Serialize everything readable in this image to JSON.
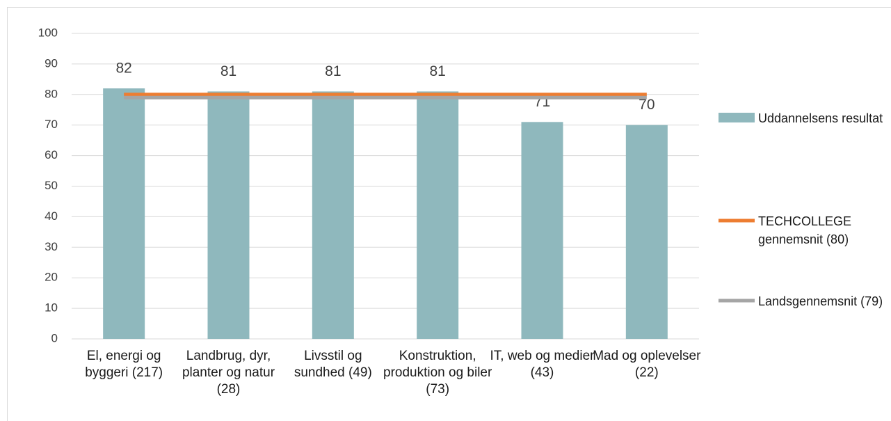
{
  "chart_data": {
    "type": "bar",
    "categories": [
      "El, energi og byggeri (217)",
      "Landbrug, dyr, planter og natur (28)",
      "Livsstil og sundhed (49)",
      "Konstruktion, produktion og biler (73)",
      "IT, web og medier (43)",
      "Mad og oplevelser (22)"
    ],
    "series": [
      {
        "name": "Uddannelsens resultat",
        "type": "bar",
        "color": "#8fb8bd",
        "values": [
          82,
          81,
          81,
          81,
          71,
          70
        ]
      },
      {
        "name": "TECHCOLLEGE gennemsnit (80)",
        "type": "line",
        "color": "#ed7d31",
        "values": [
          80,
          80,
          80,
          80,
          80,
          80
        ]
      },
      {
        "name": "Landsgennemsnit (79)",
        "type": "line",
        "color": "#a5a5a5",
        "values": [
          79,
          79,
          79,
          79,
          79,
          79
        ]
      }
    ],
    "ylim": [
      0,
      100
    ],
    "yticks": [
      0,
      10,
      20,
      30,
      40,
      50,
      60,
      70,
      80,
      90,
      100
    ],
    "grid": true,
    "legend": "right"
  }
}
